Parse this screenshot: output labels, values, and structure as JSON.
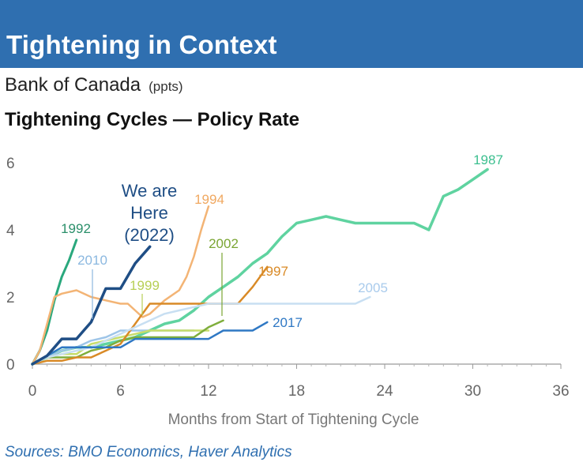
{
  "header": {
    "title": "Tightening in Context",
    "subtitle": "Bank of Canada",
    "units": "(ppts)",
    "chart_title": "Tightening Cycles — Policy Rate"
  },
  "annotation": {
    "lines": [
      "We are",
      "Here",
      "(2022)"
    ],
    "color": "#1f4e85"
  },
  "source": "Sources: BMO Economics, Haver Analytics",
  "chart_data": {
    "type": "line",
    "title": "Tightening Cycles — Policy Rate",
    "xlabel": "Months from Start of Tightening Cycle",
    "ylabel": "",
    "xlim": [
      0,
      36
    ],
    "ylim": [
      0,
      6
    ],
    "xticks": [
      0,
      6,
      12,
      18,
      24,
      30,
      36
    ],
    "yticks": [
      0,
      2,
      4,
      6
    ],
    "grid": false,
    "series": [
      {
        "name": "1987",
        "color": "#5fd3a0",
        "width": 3.5,
        "x": [
          0,
          1,
          2,
          3,
          4,
          5,
          6,
          7,
          8,
          9,
          10,
          11,
          12,
          13,
          14,
          15,
          16,
          17,
          18,
          19,
          20,
          21,
          22,
          23,
          24,
          25,
          26,
          27,
          28,
          29,
          30,
          31
        ],
        "y": [
          0,
          0.2,
          0.4,
          0.5,
          0.5,
          0.6,
          0.7,
          0.8,
          1.0,
          1.2,
          1.3,
          1.6,
          2.0,
          2.3,
          2.6,
          3.0,
          3.3,
          3.8,
          4.2,
          4.3,
          4.4,
          4.3,
          4.2,
          4.2,
          4.2,
          4.2,
          4.2,
          4.0,
          5.0,
          5.2,
          5.5,
          5.8
        ]
      },
      {
        "name": "1992",
        "color": "#2aa87d",
        "width": 3,
        "x": [
          0,
          0.5,
          1,
          1.5,
          2,
          2.5,
          3
        ],
        "y": [
          0,
          0.4,
          1.0,
          1.9,
          2.6,
          3.1,
          3.7
        ]
      },
      {
        "name": "1994",
        "color": "#f3b475",
        "width": 2.5,
        "x": [
          0,
          0.5,
          1,
          1.5,
          2,
          3,
          4,
          5,
          6,
          6.5,
          7,
          7.5,
          8,
          8.5,
          9,
          10,
          10.5,
          11,
          11.5,
          12
        ],
        "y": [
          0,
          0.4,
          1.2,
          2.0,
          2.1,
          2.2,
          2.0,
          1.9,
          1.8,
          1.8,
          1.6,
          1.4,
          1.5,
          1.7,
          1.9,
          2.2,
          2.6,
          3.2,
          4.0,
          4.7
        ]
      },
      {
        "name": "2010",
        "color": "#9ec5e8",
        "width": 2.5,
        "x": [
          0,
          1,
          2,
          3,
          4,
          5,
          6,
          7,
          8,
          9,
          10,
          11
        ],
        "y": [
          0,
          0.2,
          0.4,
          0.5,
          0.7,
          0.8,
          1.0,
          1.0,
          1.0,
          1.0,
          1.0,
          1.0
        ]
      },
      {
        "name": "1999",
        "color": "#c7dd6a",
        "width": 2.5,
        "x": [
          0,
          1,
          2,
          3,
          4,
          5,
          6,
          7,
          8,
          9,
          10,
          11,
          12
        ],
        "y": [
          0,
          0.2,
          0.3,
          0.3,
          0.6,
          0.7,
          0.8,
          0.9,
          1.0,
          1.0,
          1.0,
          1.0,
          1.0
        ]
      },
      {
        "name": "2002",
        "color": "#7fae3c",
        "width": 2.5,
        "x": [
          0,
          1,
          2,
          3,
          4,
          5,
          6,
          7,
          8,
          9,
          10,
          11,
          12,
          13
        ],
        "y": [
          0,
          0.2,
          0.2,
          0.2,
          0.4,
          0.5,
          0.7,
          0.8,
          0.8,
          0.8,
          0.8,
          0.8,
          1.1,
          1.3
        ]
      },
      {
        "name": "1997",
        "color": "#d98a26",
        "width": 2.5,
        "x": [
          0,
          1,
          2,
          3,
          4,
          5,
          6,
          7,
          8,
          9,
          10,
          11,
          12,
          13,
          14,
          15,
          16
        ],
        "y": [
          0,
          0.1,
          0.1,
          0.2,
          0.2,
          0.4,
          0.6,
          1.2,
          1.8,
          1.8,
          1.8,
          1.8,
          1.8,
          1.8,
          1.8,
          2.3,
          2.9
        ]
      },
      {
        "name": "2005",
        "color": "#c8dff2",
        "width": 2.5,
        "x": [
          0,
          1,
          2,
          3,
          4,
          5,
          6,
          7,
          8,
          9,
          10,
          11,
          12,
          13,
          14,
          15,
          16,
          17,
          18,
          19,
          20,
          21,
          22,
          23
        ],
        "y": [
          0,
          0.2,
          0.3,
          0.4,
          0.5,
          0.7,
          0.9,
          1.1,
          1.3,
          1.5,
          1.6,
          1.7,
          1.8,
          1.8,
          1.8,
          1.8,
          1.8,
          1.8,
          1.8,
          1.8,
          1.8,
          1.8,
          1.8,
          2.0
        ]
      },
      {
        "name": "2017",
        "color": "#2f78c4",
        "width": 2.5,
        "x": [
          0,
          1,
          2,
          3,
          4,
          5,
          6,
          7,
          8,
          9,
          10,
          11,
          12,
          13,
          14,
          15,
          16
        ],
        "y": [
          0,
          0.25,
          0.5,
          0.5,
          0.5,
          0.5,
          0.5,
          0.75,
          0.75,
          0.75,
          0.75,
          0.75,
          0.75,
          1.0,
          1.0,
          1.0,
          1.25
        ]
      },
      {
        "name": "2022",
        "color": "#1f4e85",
        "width": 3.5,
        "x": [
          0,
          1,
          1.5,
          2,
          3,
          3.5,
          4,
          5,
          6,
          7,
          8
        ],
        "y": [
          0,
          0.25,
          0.5,
          0.75,
          0.75,
          1.0,
          1.25,
          2.25,
          2.25,
          3.0,
          3.5
        ]
      }
    ],
    "labels": [
      {
        "text": "1987",
        "color": "#3cbf8f"
      },
      {
        "text": "1992",
        "color": "#2a8f6a"
      },
      {
        "text": "1994",
        "color": "#f0a860"
      },
      {
        "text": "2010",
        "color": "#8bb8e0"
      },
      {
        "text": "1999",
        "color": "#b7cf55"
      },
      {
        "text": "2002",
        "color": "#7aa533"
      },
      {
        "text": "1997",
        "color": "#d98a26"
      },
      {
        "text": "2005",
        "color": "#a9cbec"
      },
      {
        "text": "2017",
        "color": "#2f78c4"
      }
    ]
  }
}
